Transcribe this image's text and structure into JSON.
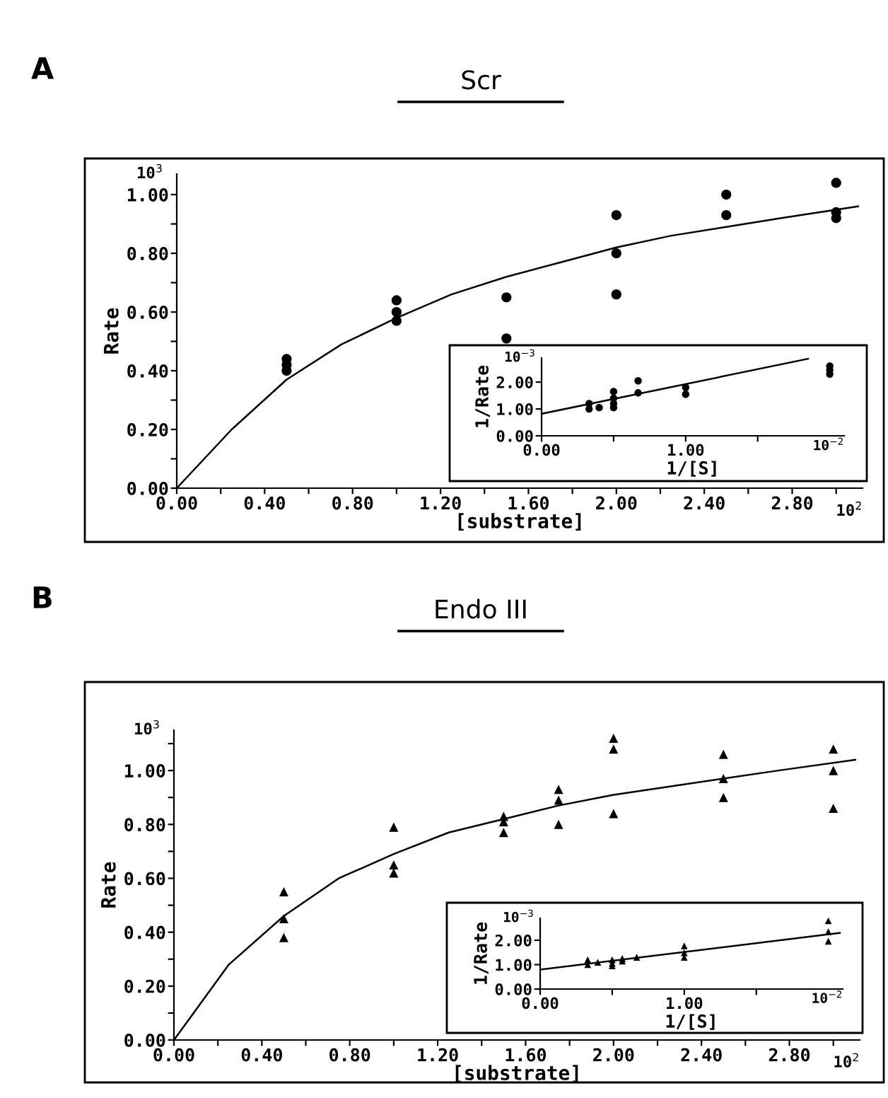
{
  "chart_data": [
    {
      "type": "scatter",
      "title": "Scr",
      "xlabel": "[substrate]",
      "ylabel": "Rate",
      "annotations": [
        "A",
        "10$^{3}$",
        "10$^{2}$"
      ],
      "grid": false,
      "legend": false,
      "line_style": "solid",
      "xlim": [
        0,
        3.12
      ],
      "ylim": [
        0,
        1.07
      ],
      "xticks": [
        {
          "value": 0,
          "label": "0.00"
        },
        {
          "value": 0.2,
          "label": null
        },
        {
          "value": 0.4,
          "label": "0.40"
        },
        {
          "value": 0.6,
          "label": null
        },
        {
          "value": 0.8,
          "label": "0.80"
        },
        {
          "value": 1.0,
          "label": null
        },
        {
          "value": 1.2,
          "label": "1.20"
        },
        {
          "value": 1.4,
          "label": null
        },
        {
          "value": 1.6,
          "label": "1.60"
        },
        {
          "value": 1.8,
          "label": null
        },
        {
          "value": 2.0,
          "label": "2.00"
        },
        {
          "value": 2.2,
          "label": null
        },
        {
          "value": 2.4,
          "label": "2.40"
        },
        {
          "value": 2.6,
          "label": null
        },
        {
          "value": 2.8,
          "label": "2.80"
        },
        {
          "value": 3.0,
          "label": null
        }
      ],
      "yticks": [
        {
          "value": 0,
          "label": "0.00"
        },
        {
          "value": 0.1,
          "label": null
        },
        {
          "value": 0.2,
          "label": "0.20"
        },
        {
          "value": 0.3,
          "label": null
        },
        {
          "value": 0.4,
          "label": "0.40"
        },
        {
          "value": 0.5,
          "label": null
        },
        {
          "value": 0.6,
          "label": "0.60"
        },
        {
          "value": 0.7,
          "label": null
        },
        {
          "value": 0.8,
          "label": "0.80"
        },
        {
          "value": 0.9,
          "label": null
        },
        {
          "value": 1.0,
          "label": "1.00"
        }
      ],
      "series": [
        {
          "marker": "circle",
          "color": "#000000",
          "x": [
            0.5,
            0.5,
            0.5,
            1.0,
            1.0,
            1.0,
            1.5,
            1.5,
            2.0,
            2.0,
            2.0,
            2.5,
            2.5,
            3.0,
            3.0,
            3.0
          ],
          "values": [
            0.44,
            0.42,
            0.4,
            0.64,
            0.6,
            0.57,
            0.65,
            0.51,
            0.93,
            0.8,
            0.66,
            1.0,
            0.93,
            1.04,
            0.94,
            0.92
          ]
        },
        {
          "type": "line",
          "color": "#000000",
          "x": [
            0,
            0.25,
            0.5,
            0.75,
            1.0,
            1.25,
            1.5,
            1.75,
            2.0,
            2.25,
            2.5,
            2.75,
            3.1
          ],
          "values": [
            0,
            0.2,
            0.37,
            0.49,
            0.58,
            0.66,
            0.72,
            0.77,
            0.82,
            0.86,
            0.89,
            0.92,
            0.96
          ]
        }
      ]
    },
    {
      "type": "scatter",
      "xlabel": "1/[S]",
      "ylabel": "1/Rate",
      "annotations": [
        "10$^{−3}$",
        "10$^{−2}$"
      ],
      "grid": false,
      "legend": false,
      "line_style": "solid",
      "xlim": [
        0,
        2.1
      ],
      "ylim": [
        0,
        2.9
      ],
      "xticks": [
        {
          "value": 0,
          "label": "0.00"
        },
        {
          "value": 0.5,
          "label": null
        },
        {
          "value": 1.0,
          "label": "1.00"
        },
        {
          "value": 1.5,
          "label": null
        }
      ],
      "yticks": [
        {
          "value": 0,
          "label": "0.00"
        },
        {
          "value": 1.0,
          "label": "1.00"
        },
        {
          "value": 2.0,
          "label": "2.00"
        }
      ],
      "series": [
        {
          "marker": "circle",
          "color": "#000000",
          "x": [
            0.33,
            0.33,
            0.4,
            0.5,
            0.5,
            0.5,
            0.5,
            0.67,
            0.67,
            1.0,
            1.0,
            2.0,
            2.0,
            2.0
          ],
          "values": [
            1.2,
            1.0,
            1.05,
            1.65,
            1.4,
            1.2,
            1.05,
            2.05,
            1.6,
            1.8,
            1.55,
            2.6,
            2.45,
            2.3
          ]
        },
        {
          "type": "line",
          "color": "#000000",
          "x": [
            0,
            1.85
          ],
          "values": [
            0.82,
            2.87
          ]
        }
      ]
    },
    {
      "type": "scatter",
      "title": "Endo III",
      "xlabel": "[substrate]",
      "ylabel": "Rate",
      "annotations": [
        "B",
        "10$^{3}$",
        "10$^{2}$"
      ],
      "grid": false,
      "legend": false,
      "line_style": "solid",
      "xlim": [
        0,
        3.12
      ],
      "ylim": [
        0,
        1.15
      ],
      "xticks": [
        {
          "value": 0,
          "label": "0.00"
        },
        {
          "value": 0.2,
          "label": null
        },
        {
          "value": 0.4,
          "label": "0.40"
        },
        {
          "value": 0.6,
          "label": null
        },
        {
          "value": 0.8,
          "label": "0.80"
        },
        {
          "value": 1.0,
          "label": null
        },
        {
          "value": 1.2,
          "label": "1.20"
        },
        {
          "value": 1.4,
          "label": null
        },
        {
          "value": 1.6,
          "label": "1.60"
        },
        {
          "value": 1.8,
          "label": null
        },
        {
          "value": 2.0,
          "label": "2.00"
        },
        {
          "value": 2.2,
          "label": null
        },
        {
          "value": 2.4,
          "label": "2.40"
        },
        {
          "value": 2.6,
          "label": null
        },
        {
          "value": 2.8,
          "label": "2.80"
        },
        {
          "value": 3.0,
          "label": null
        }
      ],
      "yticks": [
        {
          "value": 0,
          "label": "0.00"
        },
        {
          "value": 0.1,
          "label": null
        },
        {
          "value": 0.2,
          "label": "0.20"
        },
        {
          "value": 0.3,
          "label": null
        },
        {
          "value": 0.4,
          "label": "0.40"
        },
        {
          "value": 0.5,
          "label": null
        },
        {
          "value": 0.6,
          "label": "0.60"
        },
        {
          "value": 0.7,
          "label": null
        },
        {
          "value": 0.8,
          "label": "0.80"
        },
        {
          "value": 0.9,
          "label": null
        },
        {
          "value": 1.0,
          "label": "1.00"
        },
        {
          "value": 1.1,
          "label": null
        }
      ],
      "series": [
        {
          "marker": "triangle",
          "color": "#000000",
          "x": [
            0.5,
            0.5,
            0.5,
            1.0,
            1.0,
            1.0,
            1.5,
            1.5,
            1.5,
            1.75,
            1.75,
            1.75,
            2.0,
            2.0,
            2.0,
            2.5,
            2.5,
            2.5,
            3.0,
            3.0,
            3.0
          ],
          "values": [
            0.55,
            0.45,
            0.38,
            0.79,
            0.65,
            0.62,
            0.83,
            0.81,
            0.77,
            0.93,
            0.89,
            0.8,
            1.12,
            1.08,
            0.84,
            1.06,
            0.97,
            0.9,
            1.08,
            1.0,
            0.86
          ]
        },
        {
          "type": "line",
          "color": "#000000",
          "x": [
            0,
            0.25,
            0.5,
            0.75,
            1.0,
            1.25,
            1.5,
            1.75,
            2.0,
            2.25,
            2.5,
            2.75,
            3.1
          ],
          "values": [
            0,
            0.28,
            0.46,
            0.6,
            0.69,
            0.77,
            0.82,
            0.87,
            0.91,
            0.94,
            0.97,
            1.0,
            1.04
          ]
        }
      ]
    },
    {
      "type": "scatter",
      "xlabel": "1/[S]",
      "ylabel": "1/Rate",
      "annotations": [
        "10$^{−3}$",
        "10$^{−2}$"
      ],
      "grid": false,
      "legend": false,
      "line_style": "solid",
      "xlim": [
        0,
        2.1
      ],
      "ylim": [
        0,
        2.9
      ],
      "xticks": [
        {
          "value": 0,
          "label": "0.00"
        },
        {
          "value": 0.5,
          "label": null
        },
        {
          "value": 1.0,
          "label": "1.00"
        },
        {
          "value": 1.5,
          "label": null
        }
      ],
      "yticks": [
        {
          "value": 0,
          "label": "0.00"
        },
        {
          "value": 1.0,
          "label": "1.00"
        },
        {
          "value": 2.0,
          "label": "2.00"
        }
      ],
      "series": [
        {
          "marker": "triangle",
          "color": "#000000",
          "x": [
            0.33,
            0.33,
            0.4,
            0.5,
            0.5,
            0.5,
            0.57,
            0.57,
            0.67,
            1.0,
            1.0,
            1.0,
            2.0,
            2.0,
            2.0
          ],
          "values": [
            1.2,
            1.0,
            1.1,
            1.2,
            1.05,
            0.95,
            1.25,
            1.15,
            1.3,
            1.77,
            1.49,
            1.3,
            2.8,
            2.35,
            1.96
          ]
        },
        {
          "type": "line",
          "color": "#000000",
          "x": [
            0,
            2.08
          ],
          "values": [
            0.8,
            2.3
          ]
        }
      ]
    }
  ]
}
